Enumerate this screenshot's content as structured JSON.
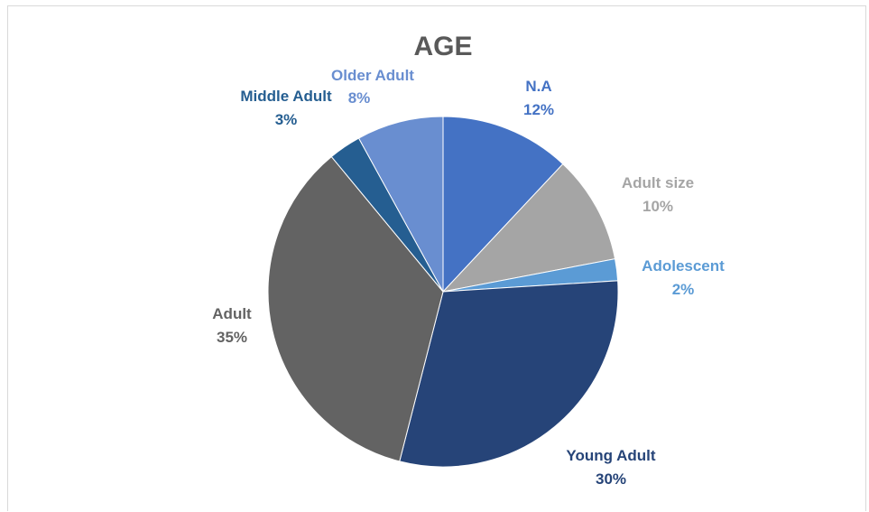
{
  "chart_data": {
    "type": "pie",
    "title": "AGE",
    "slices": [
      {
        "name": "N.A",
        "value": 12,
        "value_label": "12%",
        "color": "#4472c4"
      },
      {
        "name": "Adult size",
        "value": 10,
        "value_label": "10%",
        "color": "#a5a5a5"
      },
      {
        "name": "Adolescent",
        "value": 2,
        "value_label": "2%",
        "color": "#5b9bd5"
      },
      {
        "name": "Young Adult",
        "value": 30,
        "value_label": "30%",
        "color": "#264478"
      },
      {
        "name": "Adult",
        "value": 35,
        "value_label": "35%",
        "color": "#636363"
      },
      {
        "name": "Middle Adult",
        "value": 3,
        "value_label": "3%",
        "color": "#255e91"
      },
      {
        "name": "Older Adult",
        "value": 8,
        "value_label": "8%",
        "color": "#698ed0"
      }
    ],
    "legend": "none",
    "data_labels": "outside"
  }
}
